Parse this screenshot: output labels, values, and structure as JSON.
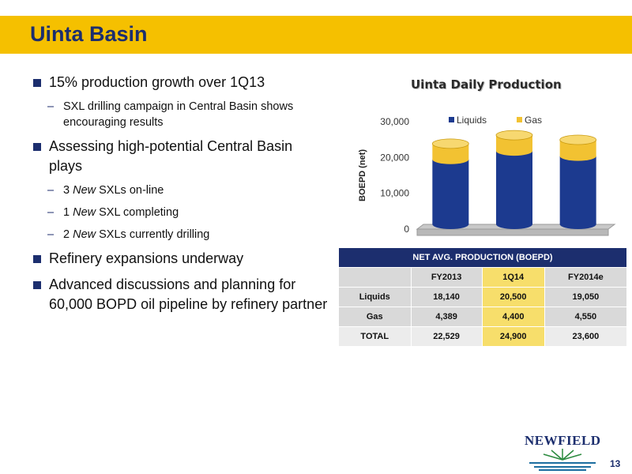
{
  "header": {
    "title": "Uinta Basin"
  },
  "bullets": [
    {
      "text": "15% production growth over 1Q13",
      "subs": [
        {
          "pre": "",
          "em": "",
          "post": "SXL drilling campaign in Central Basin shows encouraging results"
        }
      ]
    },
    {
      "text": "Assessing high-potential Central Basin plays",
      "subs": [
        {
          "pre": "3 ",
          "em": "New",
          "post": " SXLs on-line"
        },
        {
          "pre": "1 ",
          "em": "New",
          "post": " SXL completing"
        },
        {
          "pre": "2 ",
          "em": "New",
          "post": " SXLs currently drilling"
        }
      ]
    },
    {
      "text": "Refinery expansions underway",
      "subs": []
    },
    {
      "text": "Advanced discussions and planning for 60,000 BOPD oil pipeline by refinery partner",
      "subs": []
    }
  ],
  "chart_data": {
    "type": "bar",
    "stacked": true,
    "title": "Uinta Daily Production",
    "ylabel": "BOEPD (net)",
    "ylim": [
      0,
      30000
    ],
    "yticks": [
      "0",
      "10,000",
      "20,000",
      "30,000"
    ],
    "categories": [
      "FY2013",
      "1Q14",
      "FY2014e"
    ],
    "series": [
      {
        "name": "Liquids",
        "color": "#1c3a8f",
        "values": [
          18140,
          20500,
          19050
        ]
      },
      {
        "name": "Gas",
        "color": "#f2c232",
        "values": [
          4389,
          4400,
          4550
        ]
      }
    ],
    "legend": "top",
    "grid": false
  },
  "table": {
    "title": "NET AVG. PRODUCTION  (BOEPD)",
    "columns": [
      "FY2013",
      "1Q14",
      "FY2014e"
    ],
    "rows": [
      {
        "label": "Liquids",
        "values": [
          "18,140",
          "20,500",
          "19,050"
        ]
      },
      {
        "label": "Gas",
        "values": [
          "4,389",
          "4,400",
          "4,550"
        ]
      },
      {
        "label": "TOTAL",
        "values": [
          "22,529",
          "24,900",
          "23,600"
        ]
      }
    ]
  },
  "logo": {
    "text": "NEWFIELD"
  },
  "page_number": "13",
  "colors": {
    "accent": "#f5c000",
    "navy": "#1c2e6e",
    "highlight": "#f7de6b"
  }
}
